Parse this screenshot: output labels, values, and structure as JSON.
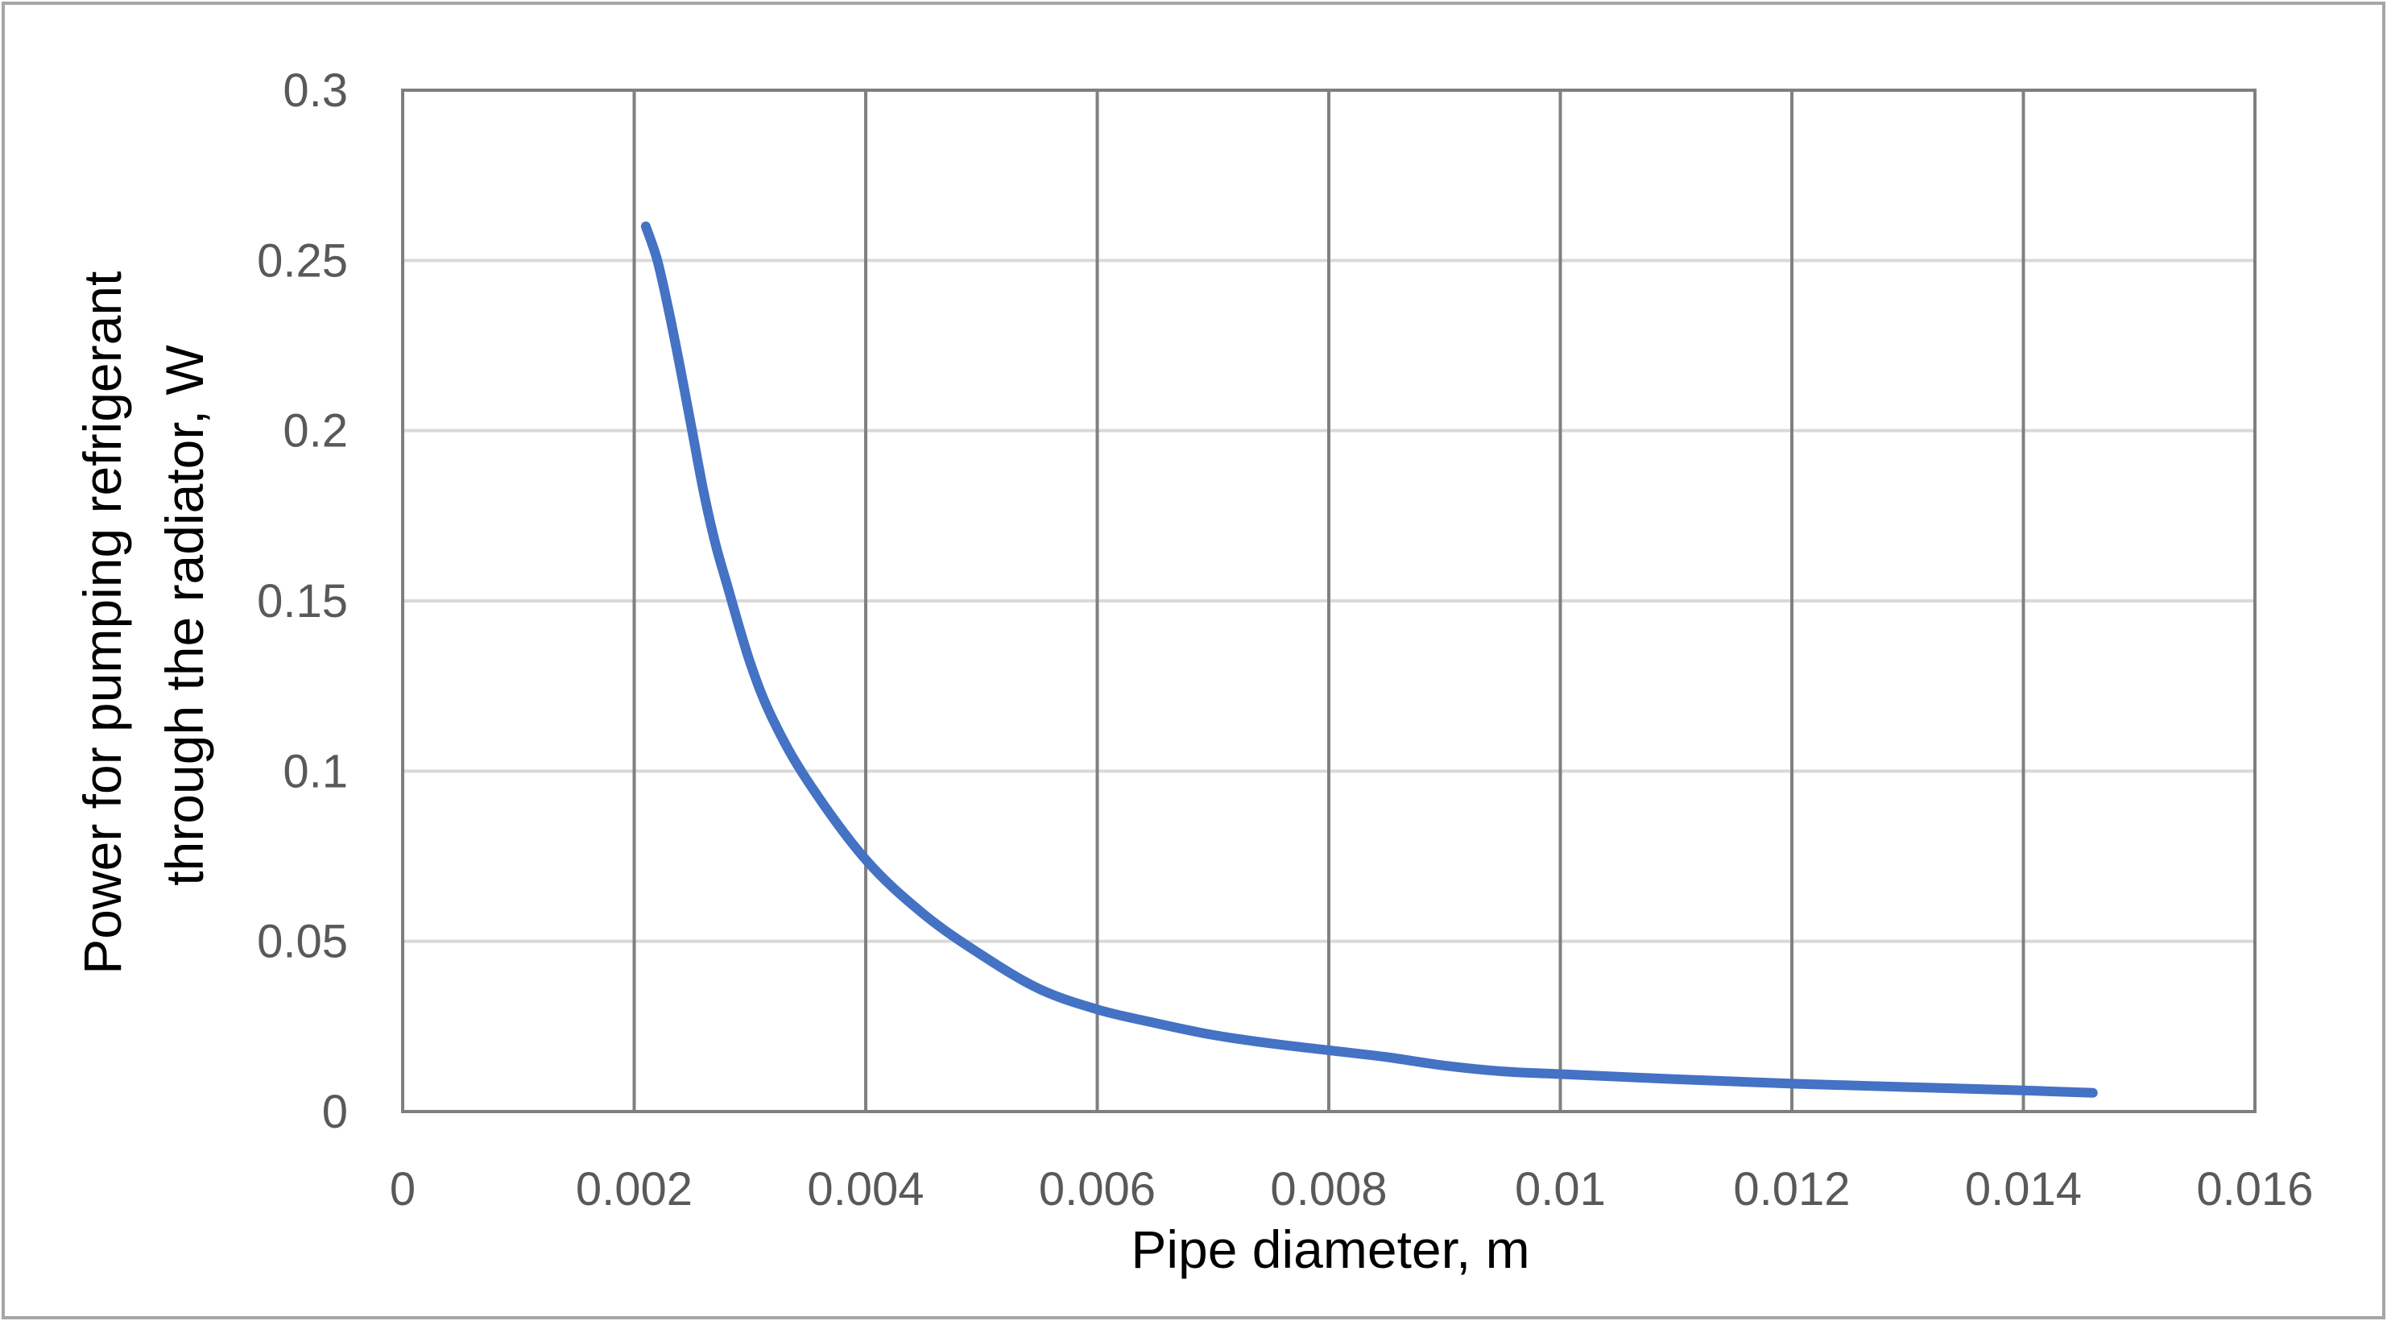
{
  "chart_data": {
    "type": "line",
    "title": "",
    "xlabel": "Pipe diameter, m",
    "ylabel_lines": [
      "Power for pumping refrigerant",
      "through the radiator, W"
    ],
    "xlim": [
      0,
      0.016
    ],
    "ylim": [
      0,
      0.3
    ],
    "x_ticks": [
      0,
      0.002,
      0.004,
      0.006,
      0.008,
      0.01,
      0.012,
      0.014,
      0.016
    ],
    "x_tick_labels": [
      "0",
      "0.002",
      "0.004",
      "0.006",
      "0.008",
      "0.01",
      "0.012",
      "0.014",
      "0.016"
    ],
    "y_ticks": [
      0,
      0.05,
      0.1,
      0.15,
      0.2,
      0.25,
      0.3
    ],
    "y_tick_labels": [
      "0",
      "0.05",
      "0.1",
      "0.15",
      "0.2",
      "0.25",
      "0.3"
    ],
    "grid": {
      "vertical": true,
      "horizontal": true
    },
    "legend": "none",
    "colors": {
      "series": "#4472C4",
      "vertical_grid": "#808080",
      "horizontal_grid": "#D9D9D9",
      "frame": "#7F7F7F"
    },
    "series": [
      {
        "x": [
          0.0021,
          0.0022,
          0.0023,
          0.0024,
          0.0025,
          0.0026,
          0.0027,
          0.0028,
          0.003,
          0.0032,
          0.0035,
          0.004,
          0.0045,
          0.005,
          0.0055,
          0.006,
          0.0065,
          0.007,
          0.0075,
          0.008,
          0.0085,
          0.009,
          0.0095,
          0.01,
          0.011,
          0.012,
          0.013,
          0.014,
          0.0146
        ],
        "y": [
          0.26,
          0.25,
          0.235,
          0.218,
          0.2,
          0.182,
          0.167,
          0.155,
          0.132,
          0.115,
          0.097,
          0.074,
          0.058,
          0.046,
          0.036,
          0.03,
          0.026,
          0.0225,
          0.02,
          0.018,
          0.016,
          0.0135,
          0.0118,
          0.011,
          0.0095,
          0.0082,
          0.0072,
          0.0062,
          0.0055
        ]
      }
    ]
  }
}
